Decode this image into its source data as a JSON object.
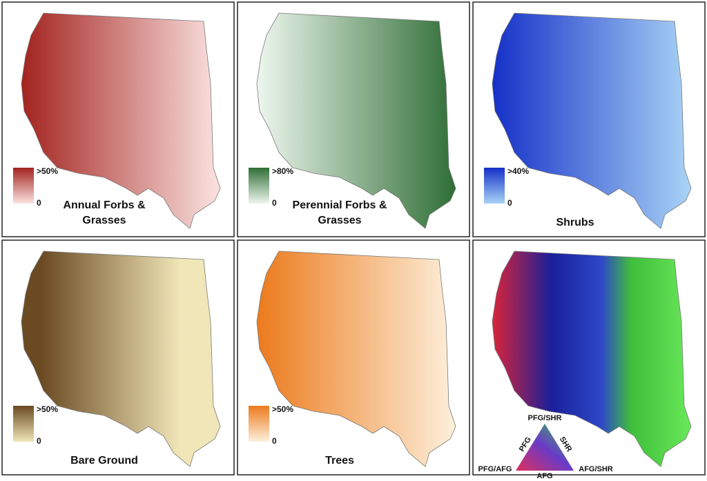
{
  "panels": [
    {
      "title_lines": [
        "Annual Forbs &",
        "Grasses"
      ],
      "legend_max": ">50%",
      "legend_min": "0",
      "dark": "#a3231e",
      "light": "#fbe3e1"
    },
    {
      "title_lines": [
        "Perennial Forbs &",
        "Grasses"
      ],
      "legend_max": ">80%",
      "legend_min": "0",
      "dark": "#2f6e36",
      "light": "#eef7ee"
    },
    {
      "title_lines": [
        "Shrubs"
      ],
      "legend_max": ">40%",
      "legend_min": "0",
      "dark": "#1530c8",
      "light": "#a9d4f6"
    },
    {
      "title_lines": [
        "Bare Ground"
      ],
      "legend_max": ">50%",
      "legend_min": "0",
      "dark": "#6b4a22",
      "light": "#f0e6b8"
    },
    {
      "title_lines": [
        "Trees"
      ],
      "legend_max": ">50%",
      "legend_min": "0",
      "dark": "#ec7a1c",
      "light": "#fdf0dc"
    }
  ],
  "composite": {
    "top": "PFG/SHR",
    "left_side": "PFG",
    "right_side": "SHR",
    "bottom": "AFG",
    "left_corner": "PFG/AFG",
    "right_corner": "AFG/SHR"
  }
}
